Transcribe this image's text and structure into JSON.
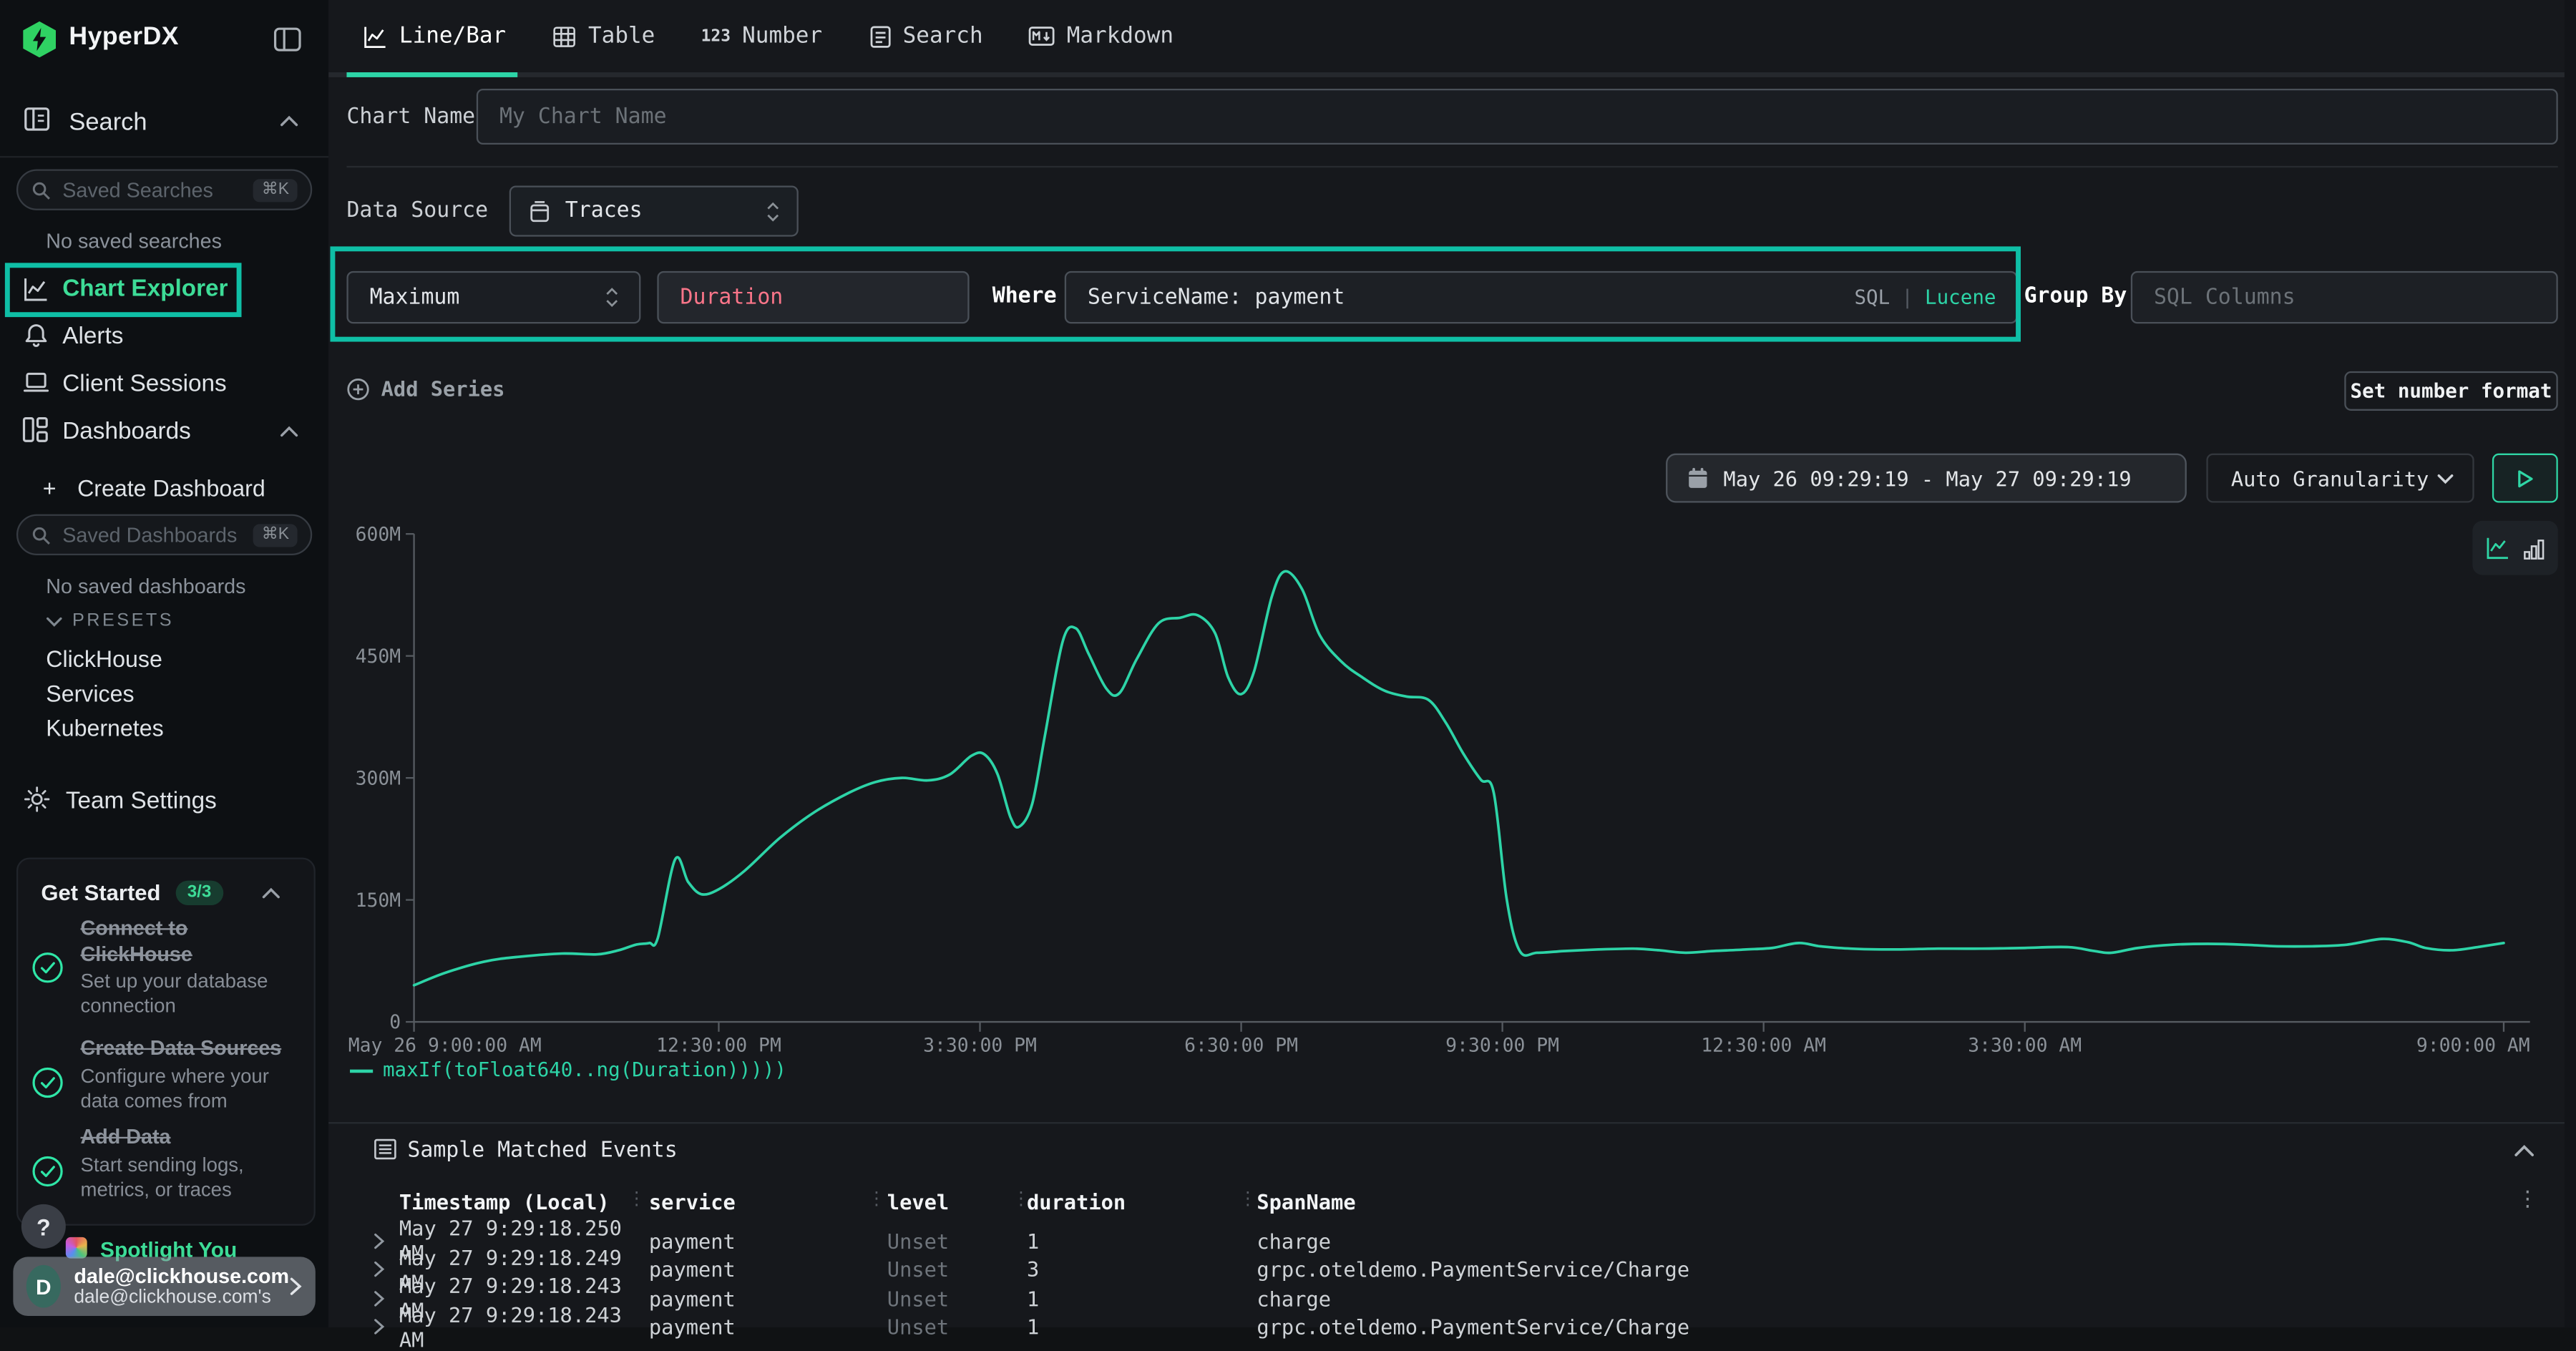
{
  "colors": {
    "accent_box": "#0fbfa6",
    "line": "#2dd4a7",
    "green_text": "#3ddc97",
    "pink": "#fa7589",
    "logo_green": "#2fd263"
  },
  "sidebar": {
    "brand": "HyperDX",
    "search": {
      "label": "Search",
      "placeholder": "Saved Searches",
      "shortcut": "⌘K",
      "empty": "No saved searches"
    },
    "nav": {
      "chart_explorer": "Chart Explorer",
      "alerts": "Alerts",
      "client_sessions": "Client Sessions",
      "dashboards": "Dashboards"
    },
    "dashboards": {
      "create": "Create Dashboard",
      "create_prefix": "+",
      "placeholder": "Saved Dashboards",
      "shortcut": "⌘K",
      "empty": "No saved dashboards",
      "presets_label": "PRESETS",
      "presets": [
        "ClickHouse",
        "Services",
        "Kubernetes"
      ]
    },
    "team_settings": "Team Settings",
    "get_started": {
      "title": "Get Started",
      "badge": "3/3",
      "items": [
        {
          "title": "Connect to ClickHouse",
          "desc": "Set up your database connection"
        },
        {
          "title": "Create Data Sources",
          "desc": "Configure where your data comes from"
        },
        {
          "title": "Add Data",
          "desc": "Start sending logs, metrics, or traces"
        }
      ]
    },
    "help": "?",
    "peek_text": "Spotlight You",
    "user": {
      "initial": "D",
      "email": "dale@clickhouse.com",
      "org": "dale@clickhouse.com's"
    }
  },
  "tabs": [
    {
      "label": "Line/Bar",
      "active": true
    },
    {
      "label": "Table"
    },
    {
      "label": "Number",
      "prefix": "123"
    },
    {
      "label": "Search"
    },
    {
      "label": "Markdown"
    }
  ],
  "form": {
    "chart_name_label": "Chart Name",
    "chart_name_placeholder": "My Chart Name",
    "data_source_label": "Data Source",
    "data_source_value": "Traces",
    "aggregation": "Maximum",
    "field_value": "Duration",
    "where_label": "Where",
    "where_value": "ServiceName: payment",
    "sql_label": "SQL",
    "lang_divider": "|",
    "lucene_label": "Lucene",
    "group_by_label": "Group By",
    "group_by_placeholder": "SQL Columns",
    "add_series": "Add Series",
    "set_number_format": "Set number format"
  },
  "toolbar": {
    "date_range": "May 26 09:29:19 - May 27 09:29:19",
    "granularity": "Auto Granularity"
  },
  "chart_data": {
    "type": "line",
    "legend": "maxIf(toFloat640..ng(Duration)))))",
    "series_color": "#2dd4a7",
    "ylim": [
      0,
      600000000
    ],
    "y_ticks": [
      {
        "v": 0,
        "label": "0"
      },
      {
        "v": 150,
        "label": "150M"
      },
      {
        "v": 300,
        "label": "300M"
      },
      {
        "v": 450,
        "label": "450M"
      },
      {
        "v": 600,
        "label": "600M"
      }
    ],
    "x_ticks": [
      {
        "h": 0,
        "label": "May 26 9:00:00 AM",
        "align": "start"
      },
      {
        "h": 3.5,
        "label": "12:30:00 PM"
      },
      {
        "h": 6.5,
        "label": "3:30:00 PM"
      },
      {
        "h": 9.5,
        "label": "6:30:00 PM"
      },
      {
        "h": 12.5,
        "label": "9:30:00 PM"
      },
      {
        "h": 15.5,
        "label": "12:30:00 AM"
      },
      {
        "h": 18.5,
        "label": "3:30:00 AM"
      },
      {
        "h": 24,
        "label": "9:00:00 AM",
        "align": "end"
      }
    ],
    "x_domain_hours": [
      0,
      24
    ],
    "points_unit": "millions",
    "points": [
      [
        0,
        45
      ],
      [
        0.35,
        60
      ],
      [
        0.8,
        74
      ],
      [
        1.2,
        80
      ],
      [
        1.7,
        84
      ],
      [
        2.1,
        83
      ],
      [
        2.35,
        88
      ],
      [
        2.55,
        95
      ],
      [
        2.7,
        97
      ],
      [
        2.8,
        103
      ],
      [
        3.0,
        200
      ],
      [
        3.15,
        172
      ],
      [
        3.3,
        157
      ],
      [
        3.5,
        163
      ],
      [
        3.8,
        186
      ],
      [
        4.2,
        226
      ],
      [
        4.6,
        258
      ],
      [
        5.0,
        282
      ],
      [
        5.3,
        295
      ],
      [
        5.6,
        300
      ],
      [
        5.9,
        297
      ],
      [
        6.15,
        304
      ],
      [
        6.4,
        327
      ],
      [
        6.55,
        329
      ],
      [
        6.7,
        305
      ],
      [
        6.85,
        252
      ],
      [
        6.95,
        240
      ],
      [
        7.1,
        268
      ],
      [
        7.25,
        355
      ],
      [
        7.45,
        468
      ],
      [
        7.6,
        484
      ],
      [
        7.75,
        452
      ],
      [
        7.95,
        410
      ],
      [
        8.1,
        404
      ],
      [
        8.3,
        446
      ],
      [
        8.55,
        490
      ],
      [
        8.8,
        497
      ],
      [
        9.0,
        500
      ],
      [
        9.2,
        478
      ],
      [
        9.35,
        424
      ],
      [
        9.5,
        403
      ],
      [
        9.65,
        432
      ],
      [
        9.85,
        522
      ],
      [
        10.0,
        554
      ],
      [
        10.2,
        532
      ],
      [
        10.4,
        476
      ],
      [
        10.65,
        443
      ],
      [
        10.9,
        423
      ],
      [
        11.15,
        407
      ],
      [
        11.4,
        400
      ],
      [
        11.65,
        396
      ],
      [
        11.85,
        368
      ],
      [
        12.05,
        330
      ],
      [
        12.25,
        298
      ],
      [
        12.4,
        282
      ],
      [
        12.55,
        150
      ],
      [
        12.7,
        87
      ],
      [
        12.9,
        85
      ],
      [
        13.2,
        87
      ],
      [
        13.6,
        89
      ],
      [
        14.0,
        90
      ],
      [
        14.3,
        88
      ],
      [
        14.6,
        85
      ],
      [
        14.9,
        87
      ],
      [
        15.3,
        89
      ],
      [
        15.6,
        91
      ],
      [
        15.9,
        97
      ],
      [
        16.15,
        93
      ],
      [
        16.5,
        90
      ],
      [
        17.0,
        89
      ],
      [
        17.5,
        90
      ],
      [
        18.0,
        90
      ],
      [
        18.5,
        91
      ],
      [
        19.0,
        92
      ],
      [
        19.3,
        87
      ],
      [
        19.5,
        85
      ],
      [
        19.8,
        91
      ],
      [
        20.2,
        95
      ],
      [
        20.6,
        96
      ],
      [
        21.0,
        95
      ],
      [
        21.4,
        93
      ],
      [
        21.8,
        93
      ],
      [
        22.2,
        95
      ],
      [
        22.6,
        102
      ],
      [
        22.9,
        98
      ],
      [
        23.1,
        91
      ],
      [
        23.4,
        88
      ],
      [
        23.7,
        92
      ],
      [
        24.0,
        97
      ]
    ]
  },
  "events_table": {
    "title": "Sample Matched Events",
    "columns": [
      "Timestamp (Local)",
      "service",
      "level",
      "duration",
      "SpanName"
    ],
    "rows": [
      [
        "May 27 9:29:18.250 AM",
        "payment",
        "Unset",
        "1",
        "charge"
      ],
      [
        "May 27 9:29:18.249 AM",
        "payment",
        "Unset",
        "3",
        "grpc.oteldemo.PaymentService/Charge"
      ],
      [
        "May 27 9:29:18.243 AM",
        "payment",
        "Unset",
        "1",
        "charge"
      ],
      [
        "May 27 9:29:18.243 AM",
        "payment",
        "Unset",
        "1",
        "grpc.oteldemo.PaymentService/Charge"
      ]
    ]
  }
}
